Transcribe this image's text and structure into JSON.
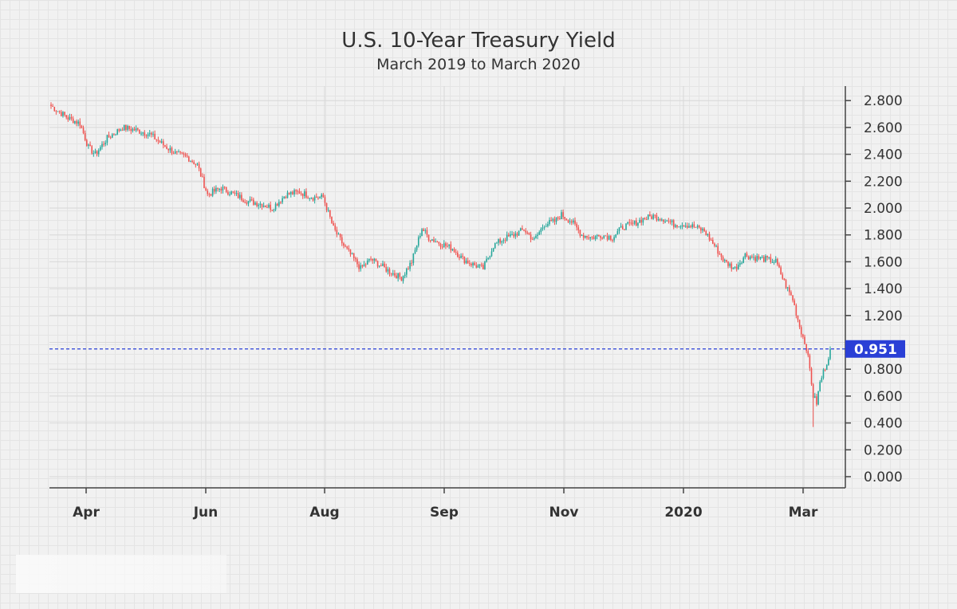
{
  "chart_data": {
    "type": "candlestick",
    "title": "U.S. 10-Year Treasury Yield",
    "subtitle": "March 2019 to March 2020",
    "ylim": [
      -0.1,
      2.9
    ],
    "y_ticks": [
      "2.800",
      "2.600",
      "2.400",
      "2.200",
      "2.000",
      "1.800",
      "1.600",
      "1.400",
      "1.200",
      "0.800",
      "0.600",
      "0.400",
      "0.200",
      "0.000"
    ],
    "x_tick_labels": [
      "Apr",
      "Jun",
      "Aug",
      "Sep",
      "Nov",
      "2020",
      "Mar"
    ],
    "current_value": "0.951",
    "colors": {
      "up": "#26a69a",
      "down": "#ef5350",
      "current": "#2a3fd6",
      "axis": "#444444"
    },
    "trend_anchors": [
      [
        0,
        2.76
      ],
      [
        10,
        2.67
      ],
      [
        17,
        2.63
      ],
      [
        22,
        2.45
      ],
      [
        26,
        2.4
      ],
      [
        33,
        2.52
      ],
      [
        42,
        2.6
      ],
      [
        50,
        2.58
      ],
      [
        58,
        2.55
      ],
      [
        66,
        2.47
      ],
      [
        74,
        2.4
      ],
      [
        80,
        2.38
      ],
      [
        86,
        2.32
      ],
      [
        92,
        2.1
      ],
      [
        100,
        2.15
      ],
      [
        108,
        2.1
      ],
      [
        116,
        2.05
      ],
      [
        124,
        2.03
      ],
      [
        130,
        2.0
      ],
      [
        138,
        2.1
      ],
      [
        146,
        2.12
      ],
      [
        154,
        2.08
      ],
      [
        160,
        2.08
      ],
      [
        166,
        1.85
      ],
      [
        172,
        1.72
      ],
      [
        178,
        1.62
      ],
      [
        182,
        1.55
      ],
      [
        188,
        1.62
      ],
      [
        194,
        1.57
      ],
      [
        200,
        1.52
      ],
      [
        206,
        1.48
      ],
      [
        212,
        1.6
      ],
      [
        218,
        1.85
      ],
      [
        222,
        1.78
      ],
      [
        230,
        1.73
      ],
      [
        236,
        1.7
      ],
      [
        242,
        1.62
      ],
      [
        248,
        1.58
      ],
      [
        254,
        1.55
      ],
      [
        260,
        1.72
      ],
      [
        266,
        1.77
      ],
      [
        272,
        1.8
      ],
      [
        278,
        1.84
      ],
      [
        284,
        1.76
      ],
      [
        290,
        1.88
      ],
      [
        296,
        1.9
      ],
      [
        300,
        1.95
      ],
      [
        306,
        1.9
      ],
      [
        312,
        1.8
      ],
      [
        318,
        1.78
      ],
      [
        324,
        1.8
      ],
      [
        330,
        1.78
      ],
      [
        336,
        1.86
      ],
      [
        342,
        1.88
      ],
      [
        348,
        1.92
      ],
      [
        354,
        1.94
      ],
      [
        360,
        1.92
      ],
      [
        366,
        1.88
      ],
      [
        372,
        1.88
      ],
      [
        378,
        1.86
      ],
      [
        384,
        1.83
      ],
      [
        390,
        1.72
      ],
      [
        396,
        1.6
      ],
      [
        402,
        1.55
      ],
      [
        408,
        1.65
      ],
      [
        414,
        1.63
      ],
      [
        420,
        1.62
      ],
      [
        426,
        1.6
      ],
      [
        432,
        1.42
      ],
      [
        436,
        1.32
      ],
      [
        440,
        1.12
      ],
      [
        444,
        0.96
      ],
      [
        446,
        0.8
      ],
      [
        448,
        0.6
      ],
      [
        450,
        0.55
      ],
      [
        452,
        0.7
      ],
      [
        454,
        0.78
      ],
      [
        456,
        0.85
      ],
      [
        458,
        0.951
      ]
    ]
  }
}
